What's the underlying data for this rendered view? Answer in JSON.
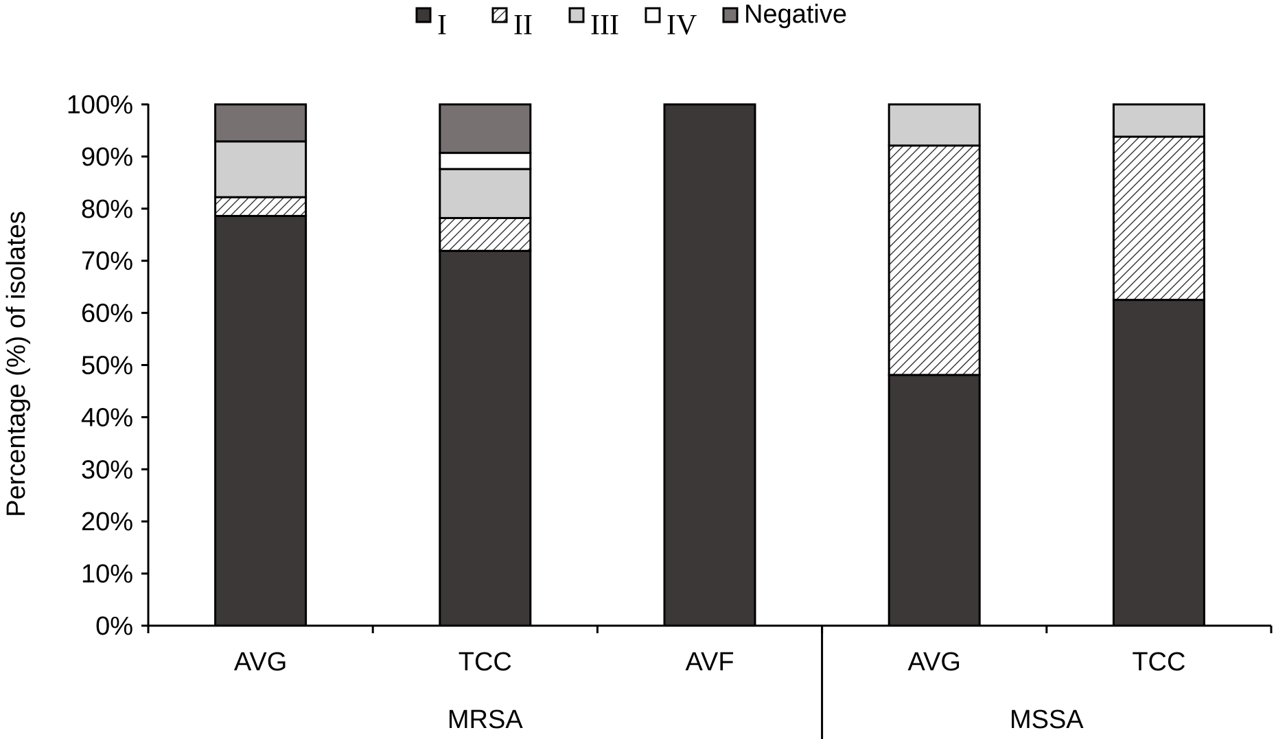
{
  "chart_data": {
    "type": "bar",
    "stacked": true,
    "normalized": true,
    "ylabel": "Percentage (%) of isolates",
    "xlabel": "",
    "ylim": [
      0,
      100
    ],
    "yticks": [
      0,
      10,
      20,
      30,
      40,
      50,
      60,
      70,
      80,
      90,
      100
    ],
    "ytick_labels": [
      "0%",
      "10%",
      "20%",
      "30%",
      "40%",
      "50%",
      "60%",
      "70%",
      "80%",
      "90%",
      "100%"
    ],
    "legend_position": "top",
    "categories": [
      "AVG",
      "TCC",
      "AVF",
      "AVG",
      "TCC"
    ],
    "groups": [
      {
        "name": "MRSA",
        "categories": [
          "AVG",
          "TCC",
          "AVF"
        ]
      },
      {
        "name": "MSSA",
        "categories": [
          "AVG",
          "TCC"
        ]
      }
    ],
    "series": [
      {
        "name": "I",
        "color": "#3b3837",
        "pattern": "solid",
        "values": [
          78.6,
          71.9,
          100,
          48.1,
          62.5
        ]
      },
      {
        "name": "II",
        "color": "#ffffff",
        "pattern": "hatch",
        "values": [
          3.6,
          6.3,
          0,
          44.0,
          31.3
        ]
      },
      {
        "name": "III",
        "color": "#cfcfcf",
        "pattern": "solid",
        "values": [
          10.7,
          9.4,
          0,
          7.9,
          6.2
        ]
      },
      {
        "name": "IV",
        "color": "#ffffff",
        "pattern": "solid",
        "values": [
          0,
          3.1,
          0,
          0,
          0
        ]
      },
      {
        "name": "Negative",
        "color": "#777171",
        "pattern": "solid",
        "values": [
          7.1,
          9.3,
          0,
          0,
          0
        ]
      }
    ]
  }
}
